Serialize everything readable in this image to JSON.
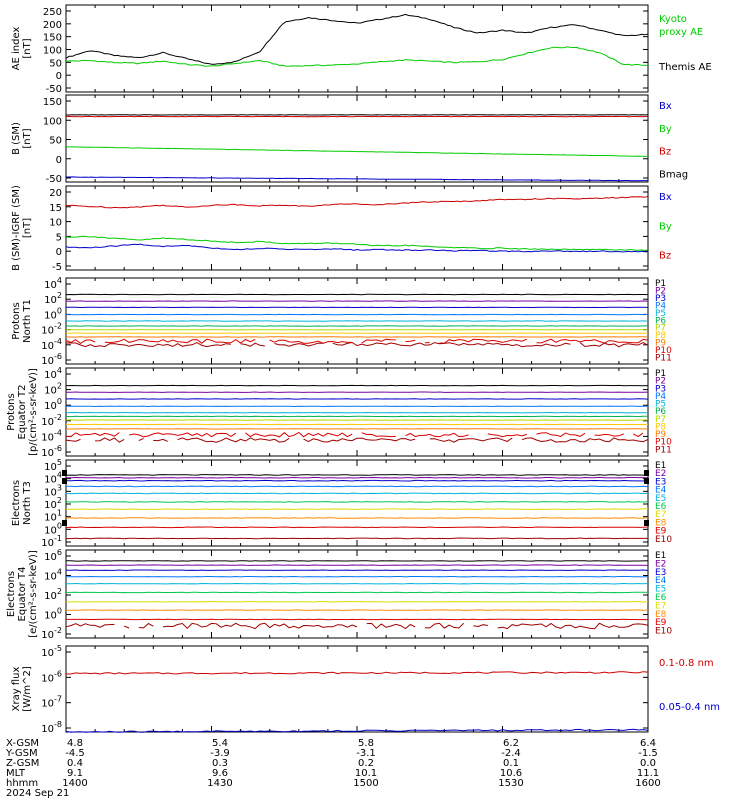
{
  "panels": [
    {
      "ylabel": [
        "AE index",
        "[nT]"
      ],
      "yticks": [
        "250",
        "200",
        "150",
        "100",
        "50",
        "0",
        "-50"
      ],
      "legend": [
        {
          "text": "Kyoto",
          "color": "#00cc00"
        },
        {
          "text": "proxy AE",
          "color": "#00cc00"
        },
        {
          "text": "Themis AE",
          "color": "#000000"
        }
      ]
    },
    {
      "ylabel": [
        "B (SM)",
        "[nT]"
      ],
      "yticks": [
        "150",
        "100",
        "50",
        "0",
        "-50"
      ],
      "legend": [
        {
          "text": "Bx",
          "color": "#0000cc"
        },
        {
          "text": "By",
          "color": "#00cc00"
        },
        {
          "text": "Bz",
          "color": "#cc0000"
        },
        {
          "text": "Bmag",
          "color": "#000000"
        }
      ]
    },
    {
      "ylabel": [
        "B (SM)-IGRF (SM)",
        "[nT]"
      ],
      "yticks": [
        "20",
        "15",
        "10",
        "5",
        "0",
        "-5"
      ],
      "legend": [
        {
          "text": "Bx",
          "color": "#0000cc"
        },
        {
          "text": "By",
          "color": "#00cc00"
        },
        {
          "text": "Bz",
          "color": "#cc0000"
        }
      ]
    },
    {
      "ylabel": [
        "Protons",
        "North T1"
      ],
      "yticks": [
        "10^4",
        "10^2",
        "10^0",
        "10^-2",
        "10^-4",
        "10^-6"
      ],
      "legend": [
        "P1",
        "P2",
        "P3",
        "P4",
        "P5",
        "P6",
        "P7",
        "P8",
        "P9",
        "P10",
        "P11"
      ]
    },
    {
      "ylabel": [
        "Protons",
        "Equator T2",
        "[p/(cm²-s-sr-keV)]"
      ],
      "yticks": [
        "10^4",
        "10^2",
        "10^0",
        "10^-2",
        "10^-4",
        "10^-6"
      ],
      "legend": [
        "P1",
        "P2",
        "P3",
        "P4",
        "P5",
        "P6",
        "P7",
        "P8",
        "P9",
        "P10",
        "P11"
      ]
    },
    {
      "ylabel": [
        "Electrons",
        "North T3"
      ],
      "yticks": [
        "10^5",
        "10^4",
        "10^3",
        "10^2",
        "10^1",
        "10^0",
        "10^-1"
      ],
      "legend": [
        "E1",
        "E2",
        "E3",
        "E4",
        "E5",
        "E6",
        "E7",
        "E8",
        "E9",
        "E10"
      ]
    },
    {
      "ylabel": [
        "Electrons",
        "Equator T4",
        "[e/(cm²-s-sr-keV)]"
      ],
      "yticks": [
        "10^6",
        "10^4",
        "10^2",
        "10^0",
        "10^-2"
      ],
      "legend": [
        "E1",
        "E2",
        "E3",
        "E4",
        "E5",
        "E6",
        "E7",
        "E8",
        "E9",
        "E10"
      ]
    },
    {
      "ylabel": [
        "Xray flux",
        "[W/m^2]"
      ],
      "yticks": [
        "10^-5",
        "10^-6",
        "10^-7",
        "10^-8"
      ],
      "legend": [
        {
          "text": "0.1-0.8 nm",
          "color": "#cc0000"
        },
        {
          "text": "0.05-0.4 nm",
          "color": "#0000cc"
        }
      ]
    }
  ],
  "channel_colors_protons": [
    "#000000",
    "#7a00a0",
    "#0000cc",
    "#0077ff",
    "#00b4dc",
    "#00b050",
    "#b4dc00",
    "#ffc800",
    "#ff7a00",
    "#dc0000",
    "#a00000"
  ],
  "channel_colors_electrons": [
    "#000000",
    "#7a00a0",
    "#0000cc",
    "#0077ff",
    "#00b4dc",
    "#00c850",
    "#dcdc00",
    "#ff8c00",
    "#dc0000",
    "#a00000"
  ],
  "xaxis": {
    "rows": [
      {
        "label": "X-GSM",
        "values": [
          "4.8",
          "5.4",
          "5.8",
          "6.2",
          "6.4"
        ]
      },
      {
        "label": "Y-GSM",
        "values": [
          "-4.5",
          "-3.9",
          "-3.1",
          "-2.4",
          "-1.5"
        ]
      },
      {
        "label": "Z-GSM",
        "values": [
          "0.4",
          "0.3",
          "0.2",
          "0.1",
          "0.0"
        ]
      },
      {
        "label": "MLT",
        "values": [
          "9.1",
          "9.6",
          "10.1",
          "10.6",
          "11.1"
        ]
      },
      {
        "label": "hhmm",
        "values": [
          "1400",
          "1430",
          "1500",
          "1530",
          "1600"
        ]
      }
    ],
    "date": "2024 Sep 21"
  },
  "chart_data": [
    {
      "type": "line",
      "x": [
        "1400",
        "1405",
        "1410",
        "1415",
        "1420",
        "1425",
        "1430",
        "1435",
        "1440",
        "1445",
        "1450",
        "1455",
        "1500",
        "1505",
        "1510",
        "1515",
        "1520",
        "1525",
        "1530",
        "1535",
        "1540",
        "1545",
        "1550",
        "1555",
        "1600"
      ],
      "xlim": [
        "1400",
        "1600"
      ],
      "ylim": [
        -50,
        260
      ],
      "series": [
        {
          "name": "Themis AE",
          "color": "#000000",
          "values": [
            72,
            98,
            80,
            72,
            90,
            68,
            48,
            58,
            95,
            200,
            215,
            205,
            195,
            210,
            225,
            210,
            180,
            160,
            170,
            160,
            180,
            190,
            170,
            150,
            155
          ]
        },
        {
          "name": "Kyoto proxy AE",
          "color": "#00cc00",
          "values": [
            60,
            62,
            55,
            52,
            60,
            48,
            42,
            52,
            62,
            42,
            44,
            46,
            50,
            58,
            64,
            60,
            55,
            58,
            66,
            88,
            108,
            110,
            90,
            48,
            45
          ]
        }
      ]
    },
    {
      "type": "line",
      "x": [
        "1400",
        "1600"
      ],
      "xlim": [
        "1400",
        "1600"
      ],
      "ylim": [
        -50,
        160
      ],
      "series": [
        {
          "name": "Bmag",
          "color": "#000000",
          "values": [
            112,
            112
          ]
        },
        {
          "name": "Bz",
          "color": "#cc0000",
          "values": [
            108,
            108
          ]
        },
        {
          "name": "By",
          "color": "#00cc00",
          "values": [
            35,
            12
          ]
        },
        {
          "name": "Bx",
          "color": "#0000cc",
          "values": [
            -38,
            -47
          ]
        }
      ]
    },
    {
      "type": "line",
      "x": [
        "1400",
        "1405",
        "1410",
        "1415",
        "1420",
        "1425",
        "1430",
        "1435",
        "1440",
        "1445",
        "1450",
        "1455",
        "1500",
        "1505",
        "1510",
        "1515",
        "1520",
        "1525",
        "1530",
        "1535",
        "1540",
        "1545",
        "1550",
        "1555",
        "1600"
      ],
      "xlim": [
        "1400",
        "1600"
      ],
      "ylim": [
        -7,
        21
      ],
      "series": [
        {
          "name": "Bz",
          "color": "#cc0000",
          "values": [
            14.5,
            14.2,
            13.8,
            14.0,
            14.6,
            13.9,
            14.6,
            14.8,
            14.4,
            14.6,
            14.2,
            14.9,
            15.0,
            14.8,
            15.4,
            15.7,
            15.8,
            16.1,
            16.5,
            16.6,
            16.8,
            16.7,
            16.9,
            17.2,
            17.4
          ]
        },
        {
          "name": "By",
          "color": "#00cc00",
          "values": [
            4.0,
            4.2,
            3.5,
            3.0,
            3.6,
            3.2,
            2.6,
            2.2,
            2.5,
            1.8,
            1.8,
            2.0,
            1.5,
            1.0,
            1.2,
            0.8,
            0.5,
            0.2,
            0.3,
            0.0,
            -0.1,
            -0.2,
            -0.2,
            -0.3,
            -0.4
          ]
        },
        {
          "name": "Bx",
          "color": "#0000cc",
          "values": [
            0.6,
            0.4,
            1.0,
            1.6,
            0.8,
            1.2,
            0.4,
            -0.2,
            0.2,
            0.0,
            -0.2,
            0.0,
            -0.3,
            -0.2,
            -0.4,
            -0.3,
            -0.6,
            -0.5,
            -0.7,
            -0.8,
            -0.6,
            -0.8,
            -0.7,
            -0.9,
            -0.8
          ]
        }
      ]
    },
    {
      "type": "line",
      "yscale": "log",
      "ylim": [
        "1e-7",
        "1e5"
      ],
      "channels": [
        "P1",
        "P2",
        "P3",
        "P4",
        "P5",
        "P6",
        "P7",
        "P8",
        "P9",
        "P10",
        "P11"
      ],
      "series": [
        {
          "name": "P1",
          "values": [
            500
          ]
        },
        {
          "name": "P2",
          "values": [
            60
          ]
        },
        {
          "name": "P3",
          "values": [
            8
          ]
        },
        {
          "name": "P4",
          "values": [
            0.8
          ]
        },
        {
          "name": "P5",
          "values": [
            0.1
          ]
        },
        {
          "name": "P6",
          "values": [
            0.02
          ]
        },
        {
          "name": "P7",
          "values": [
            0.006
          ]
        },
        {
          "name": "P8",
          "values": [
            0.002
          ]
        },
        {
          "name": "P9",
          "values": [
            0.0006
          ]
        },
        {
          "name": "P10",
          "values": [
            0.00015
          ]
        },
        {
          "name": "P11",
          "values": [
            5e-05
          ]
        }
      ]
    },
    {
      "type": "line",
      "yscale": "log",
      "ylim": [
        "1e-7",
        "1e5"
      ],
      "channels": [
        "P1",
        "P2",
        "P3",
        "P4",
        "P5",
        "P6",
        "P7",
        "P8",
        "P9",
        "P10",
        "P11"
      ],
      "series": [
        {
          "name": "P1",
          "values": [
            400
          ]
        },
        {
          "name": "P2",
          "values": [
            50
          ]
        },
        {
          "name": "P3",
          "values": [
            6
          ]
        },
        {
          "name": "P4",
          "values": [
            0.6
          ]
        },
        {
          "name": "P5",
          "values": [
            0.08
          ]
        },
        {
          "name": "P6",
          "values": [
            0.025
          ]
        },
        {
          "name": "P7",
          "values": [
            0.008
          ]
        },
        {
          "name": "P8",
          "values": [
            0.002
          ]
        },
        {
          "name": "P9",
          "values": [
            0.0005
          ]
        },
        {
          "name": "P10",
          "values": [
            8e-05
          ]
        },
        {
          "name": "P11",
          "values": [
            1.5e-05
          ]
        }
      ]
    },
    {
      "type": "line",
      "yscale": "log",
      "ylim": [
        "0.05",
        "3e5"
      ],
      "channels": [
        "E1",
        "E2",
        "E3",
        "E4",
        "E5",
        "E6",
        "E7",
        "E8",
        "E9",
        "E10"
      ],
      "series": [
        {
          "name": "E1",
          "values": [
            20000
          ]
        },
        {
          "name": "E2",
          "values": [
            12000
          ]
        },
        {
          "name": "E3",
          "values": [
            7000
          ]
        },
        {
          "name": "E4",
          "values": [
            2500
          ]
        },
        {
          "name": "E5",
          "values": [
            700
          ]
        },
        {
          "name": "E6",
          "values": [
            150
          ]
        },
        {
          "name": "E7",
          "values": [
            40
          ]
        },
        {
          "name": "E8",
          "values": [
            8
          ]
        },
        {
          "name": "E9",
          "values": [
            1.5
          ]
        },
        {
          "name": "E10",
          "values": [
            0.2
          ]
        }
      ]
    },
    {
      "type": "line",
      "yscale": "log",
      "ylim": [
        "0.001",
        "3e6"
      ],
      "channels": [
        "E1",
        "E2",
        "E3",
        "E4",
        "E5",
        "E6",
        "E7",
        "E8",
        "E9",
        "E10"
      ],
      "series": [
        {
          "name": "E1",
          "values": [
            200000
          ]
        },
        {
          "name": "E2",
          "values": [
            70000
          ]
        },
        {
          "name": "E3",
          "values": [
            20000
          ]
        },
        {
          "name": "E4",
          "values": [
            4000
          ]
        },
        {
          "name": "E5",
          "values": [
            700
          ]
        },
        {
          "name": "E6",
          "values": [
            80
          ]
        },
        {
          "name": "E7",
          "values": [
            8
          ]
        },
        {
          "name": "E8",
          "values": [
            1
          ]
        },
        {
          "name": "E9",
          "values": [
            0.1
          ]
        },
        {
          "name": "E10",
          "values": [
            0.02
          ]
        }
      ]
    },
    {
      "type": "line",
      "yscale": "log",
      "ylim": [
        "1e-8",
        "1e-5"
      ],
      "series": [
        {
          "name": "0.1-0.8 nm",
          "values": [
            "1.1e-6",
            "1.2e-6"
          ]
        },
        {
          "name": "0.05-0.4 nm",
          "values": [
            "1.0e-8",
            "1.2e-8"
          ]
        }
      ]
    }
  ]
}
